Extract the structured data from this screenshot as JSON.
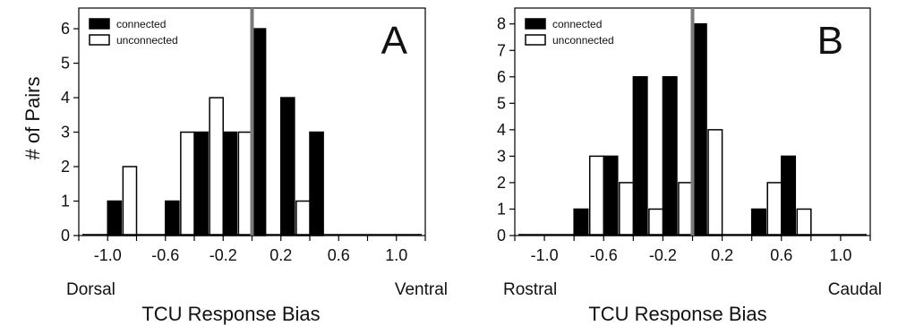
{
  "y_axis_label": "# of Pairs",
  "chart_data": [
    {
      "type": "bar",
      "panel_label": "A",
      "xlabel": "TCU Response Bias",
      "ylabel": "# of Pairs",
      "left_end_label": "Dorsal",
      "right_end_label": "Ventral",
      "xlim": [
        -1.2,
        1.2
      ],
      "ylim": [
        0,
        6.6
      ],
      "x_ticks": [
        -1.0,
        -0.6,
        -0.2,
        0.2,
        0.6,
        1.0
      ],
      "x_tick_labels": [
        "-1.0",
        "-0.6",
        "-0.2",
        "0.2",
        "0.6",
        "1.0"
      ],
      "y_ticks": [
        0,
        1,
        2,
        3,
        4,
        5,
        6
      ],
      "bin_centers": [
        -1.1,
        -0.9,
        -0.7,
        -0.5,
        -0.3,
        -0.1,
        0.1,
        0.3,
        0.5,
        0.7,
        0.9,
        1.1
      ],
      "vertical_line_x": 0.0,
      "legend_position": "top-left",
      "grid": false,
      "series": [
        {
          "name": "connected",
          "color": "#000000",
          "values": [
            0,
            1,
            0,
            1,
            3,
            3,
            6,
            4,
            3,
            0,
            0,
            0
          ]
        },
        {
          "name": "unconnected",
          "color": "#ffffff",
          "values": [
            0,
            2,
            0,
            3,
            4,
            3,
            0,
            1,
            0,
            0,
            0,
            0
          ]
        }
      ]
    },
    {
      "type": "bar",
      "panel_label": "B",
      "xlabel": "TCU Response Bias",
      "ylabel": "",
      "left_end_label": "Rostral",
      "right_end_label": "Caudal",
      "xlim": [
        -1.2,
        1.2
      ],
      "ylim": [
        0,
        8.6
      ],
      "x_ticks": [
        -1.0,
        -0.6,
        -0.2,
        0.2,
        0.6,
        1.0
      ],
      "x_tick_labels": [
        "-1.0",
        "-0.6",
        "-0.2",
        "0.2",
        "0.6",
        "1.0"
      ],
      "y_ticks": [
        0,
        1,
        2,
        3,
        4,
        5,
        6,
        7,
        8
      ],
      "bin_centers": [
        -1.1,
        -0.9,
        -0.7,
        -0.5,
        -0.3,
        -0.1,
        0.1,
        0.3,
        0.5,
        0.7,
        0.9,
        1.1
      ],
      "vertical_line_x": 0.0,
      "legend_position": "top-left",
      "grid": false,
      "series": [
        {
          "name": "connected",
          "color": "#000000",
          "values": [
            0,
            0,
            1,
            3,
            6,
            6,
            8,
            0,
            1,
            3,
            0,
            0
          ]
        },
        {
          "name": "unconnected",
          "color": "#ffffff",
          "values": [
            0,
            0,
            3,
            2,
            1,
            2,
            4,
            0,
            2,
            1,
            0,
            0
          ]
        }
      ]
    }
  ]
}
